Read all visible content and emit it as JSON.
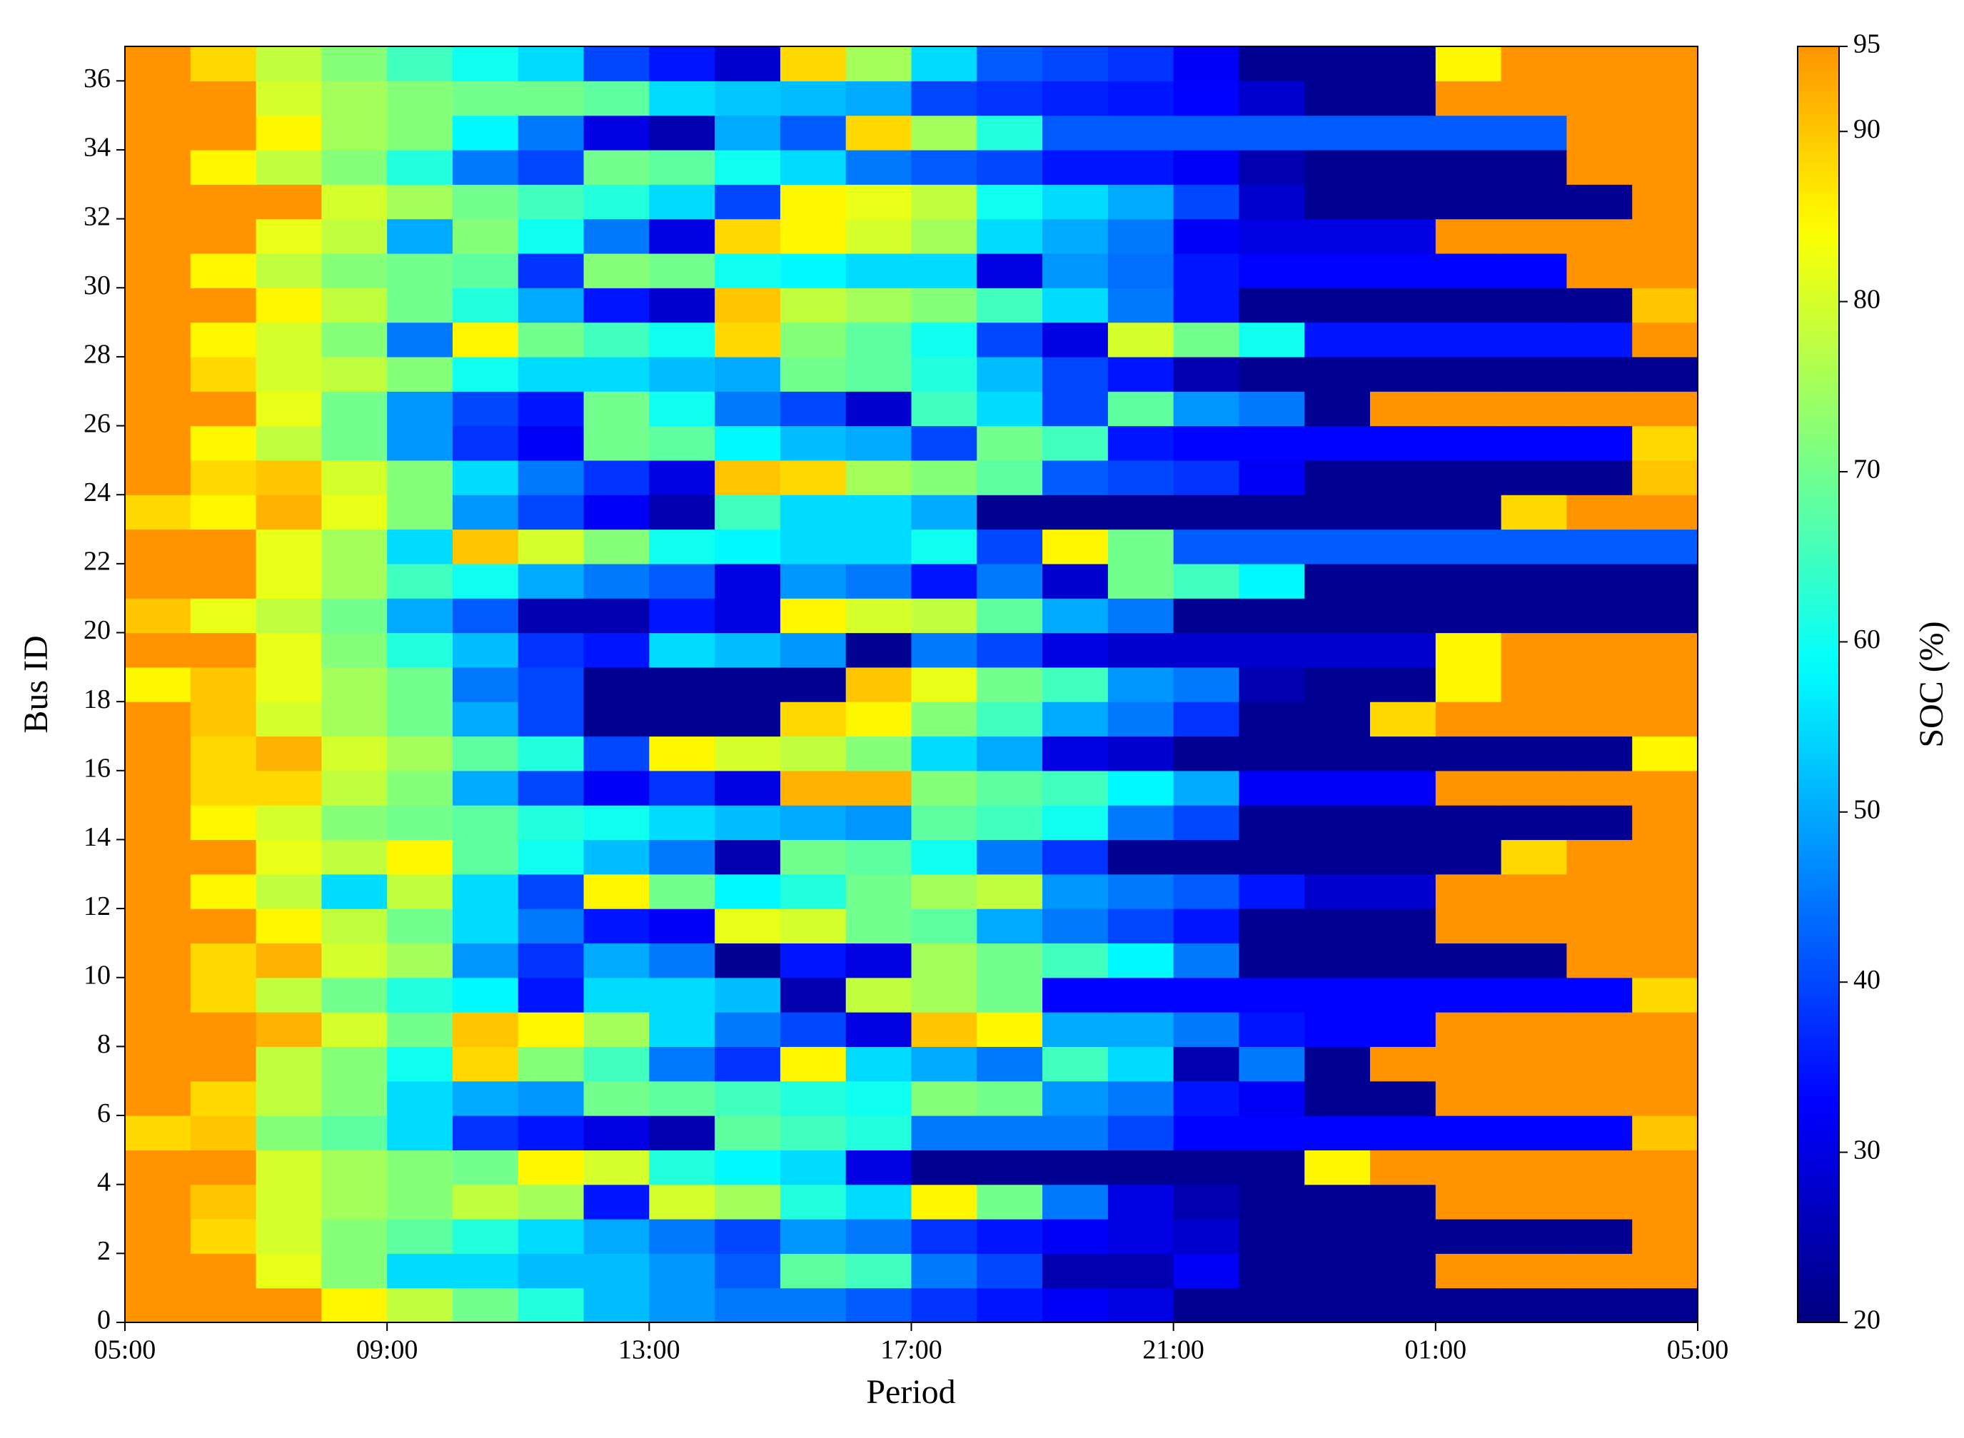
{
  "chart_data": {
    "type": "heatmap",
    "x_label": "Period",
    "y_label": "Bus ID",
    "colorbar_label": "SOC (%)",
    "colormap": "jet",
    "xlim": [
      0,
      24
    ],
    "xticks": [
      {
        "value": 0,
        "label": "05:00"
      },
      {
        "value": 4,
        "label": "09:00"
      },
      {
        "value": 8,
        "label": "13:00"
      },
      {
        "value": 12,
        "label": "17:00"
      },
      {
        "value": 16,
        "label": "21:00"
      },
      {
        "value": 20,
        "label": "01:00"
      },
      {
        "value": 24,
        "label": "05:00"
      }
    ],
    "ylim": [
      0,
      37
    ],
    "yticks": [
      0,
      2,
      4,
      6,
      8,
      10,
      12,
      14,
      16,
      18,
      20,
      22,
      24,
      26,
      28,
      30,
      32,
      34,
      36
    ],
    "clim": [
      20,
      95
    ],
    "cticks": [
      20,
      30,
      40,
      50,
      60,
      70,
      80,
      90,
      95
    ],
    "z": [
      [
        95,
        95,
        95,
        85,
        78,
        70,
        62,
        52,
        48,
        45,
        45,
        42,
        38,
        35,
        32,
        30,
        22,
        22,
        22,
        22,
        22,
        22,
        22,
        22
      ],
      [
        95,
        95,
        82,
        72,
        55,
        55,
        52,
        52,
        48,
        42,
        68,
        65,
        45,
        40,
        25,
        25,
        32,
        22,
        22,
        22,
        95,
        95,
        95,
        95
      ],
      [
        95,
        88,
        80,
        72,
        68,
        62,
        55,
        50,
        45,
        40,
        48,
        45,
        38,
        35,
        32,
        30,
        28,
        22,
        22,
        22,
        22,
        22,
        22,
        95
      ],
      [
        95,
        90,
        80,
        75,
        72,
        78,
        75,
        35,
        80,
        75,
        62,
        55,
        85,
        70,
        45,
        30,
        25,
        22,
        22,
        22,
        95,
        95,
        95,
        95
      ],
      [
        95,
        95,
        80,
        75,
        72,
        70,
        85,
        80,
        62,
        58,
        55,
        30,
        22,
        22,
        22,
        22,
        22,
        22,
        85,
        95,
        95,
        95,
        95,
        95
      ],
      [
        88,
        90,
        72,
        68,
        55,
        38,
        35,
        30,
        25,
        68,
        65,
        62,
        45,
        45,
        45,
        40,
        33,
        33,
        33,
        33,
        33,
        33,
        33,
        90
      ],
      [
        95,
        88,
        78,
        72,
        55,
        50,
        48,
        70,
        68,
        65,
        62,
        60,
        72,
        70,
        48,
        45,
        35,
        32,
        22,
        22,
        95,
        95,
        95,
        95
      ],
      [
        95,
        95,
        78,
        72,
        60,
        88,
        72,
        65,
        45,
        38,
        85,
        55,
        50,
        45,
        65,
        55,
        25,
        45,
        22,
        95,
        95,
        95,
        95,
        95
      ],
      [
        95,
        95,
        92,
        80,
        70,
        90,
        85,
        75,
        55,
        45,
        40,
        30,
        90,
        85,
        50,
        50,
        45,
        35,
        33,
        33,
        95,
        95,
        95,
        95
      ],
      [
        95,
        88,
        78,
        70,
        62,
        58,
        35,
        55,
        55,
        52,
        25,
        78,
        75,
        70,
        33,
        33,
        33,
        33,
        33,
        33,
        33,
        33,
        33,
        88
      ],
      [
        95,
        88,
        92,
        80,
        75,
        48,
        38,
        50,
        45,
        22,
        35,
        30,
        75,
        70,
        65,
        58,
        45,
        22,
        22,
        22,
        22,
        22,
        95,
        95
      ],
      [
        95,
        95,
        85,
        78,
        70,
        55,
        45,
        35,
        32,
        82,
        80,
        70,
        68,
        50,
        45,
        40,
        35,
        22,
        22,
        22,
        95,
        95,
        95,
        95
      ],
      [
        95,
        85,
        78,
        55,
        78,
        55,
        40,
        85,
        70,
        58,
        62,
        70,
        75,
        78,
        48,
        45,
        42,
        35,
        28,
        28,
        95,
        95,
        95,
        95
      ],
      [
        95,
        95,
        82,
        78,
        85,
        68,
        60,
        52,
        45,
        25,
        70,
        68,
        60,
        45,
        38,
        22,
        22,
        22,
        22,
        22,
        22,
        88,
        95,
        95
      ],
      [
        95,
        85,
        80,
        72,
        70,
        68,
        62,
        60,
        55,
        52,
        50,
        48,
        68,
        65,
        60,
        45,
        40,
        22,
        22,
        22,
        22,
        22,
        22,
        95
      ],
      [
        95,
        88,
        88,
        78,
        72,
        50,
        40,
        32,
        38,
        30,
        92,
        92,
        72,
        68,
        65,
        58,
        50,
        32,
        32,
        32,
        95,
        95,
        95,
        95
      ],
      [
        95,
        88,
        92,
        80,
        75,
        68,
        62,
        40,
        85,
        80,
        78,
        72,
        55,
        50,
        30,
        28,
        22,
        22,
        22,
        22,
        22,
        22,
        22,
        85
      ],
      [
        95,
        90,
        80,
        75,
        70,
        50,
        40,
        22,
        22,
        22,
        88,
        85,
        72,
        65,
        50,
        45,
        38,
        22,
        22,
        88,
        95,
        95,
        95,
        95
      ],
      [
        85,
        90,
        82,
        75,
        70,
        45,
        40,
        22,
        22,
        22,
        22,
        90,
        82,
        70,
        65,
        48,
        45,
        25,
        22,
        22,
        85,
        95,
        95,
        95
      ],
      [
        95,
        95,
        82,
        72,
        62,
        52,
        38,
        35,
        55,
        52,
        48,
        22,
        45,
        40,
        30,
        28,
        28,
        28,
        28,
        28,
        85,
        95,
        95,
        95
      ],
      [
        90,
        82,
        78,
        70,
        50,
        42,
        25,
        25,
        35,
        30,
        85,
        80,
        78,
        68,
        50,
        45,
        22,
        22,
        22,
        22,
        22,
        22,
        22,
        22
      ],
      [
        95,
        95,
        82,
        75,
        65,
        60,
        50,
        45,
        42,
        30,
        48,
        45,
        35,
        45,
        28,
        70,
        65,
        58,
        22,
        22,
        22,
        22,
        22,
        22
      ],
      [
        95,
        95,
        82,
        75,
        55,
        90,
        80,
        72,
        60,
        58,
        55,
        55,
        60,
        40,
        85,
        70,
        42,
        42,
        42,
        42,
        42,
        42,
        42,
        42
      ],
      [
        88,
        85,
        92,
        82,
        72,
        48,
        40,
        32,
        25,
        65,
        55,
        55,
        50,
        22,
        22,
        22,
        22,
        22,
        22,
        22,
        22,
        88,
        95,
        95
      ],
      [
        95,
        88,
        90,
        80,
        72,
        55,
        45,
        38,
        30,
        90,
        88,
        75,
        72,
        68,
        42,
        40,
        38,
        32,
        22,
        22,
        22,
        22,
        22,
        90
      ],
      [
        95,
        85,
        78,
        70,
        48,
        38,
        32,
        70,
        68,
        58,
        52,
        50,
        40,
        70,
        65,
        35,
        33,
        33,
        33,
        33,
        33,
        33,
        33,
        88
      ],
      [
        95,
        95,
        82,
        70,
        48,
        40,
        35,
        70,
        60,
        45,
        40,
        28,
        65,
        55,
        40,
        68,
        48,
        45,
        22,
        95,
        95,
        95,
        95,
        95
      ],
      [
        95,
        88,
        80,
        78,
        72,
        60,
        55,
        55,
        52,
        50,
        70,
        68,
        62,
        52,
        40,
        35,
        25,
        22,
        22,
        22,
        22,
        22,
        22,
        22
      ],
      [
        95,
        85,
        80,
        72,
        45,
        85,
        70,
        65,
        60,
        88,
        72,
        68,
        60,
        40,
        30,
        80,
        70,
        60,
        35,
        35,
        35,
        35,
        35,
        95
      ],
      [
        95,
        95,
        85,
        78,
        70,
        62,
        50,
        35,
        28,
        90,
        78,
        75,
        72,
        65,
        55,
        45,
        35,
        22,
        22,
        22,
        22,
        22,
        22,
        90
      ],
      [
        95,
        85,
        78,
        72,
        70,
        68,
        38,
        72,
        70,
        60,
        58,
        55,
        55,
        30,
        48,
        44,
        35,
        33,
        33,
        33,
        33,
        33,
        95,
        95
      ],
      [
        95,
        95,
        82,
        78,
        50,
        72,
        60,
        45,
        30,
        88,
        85,
        80,
        75,
        55,
        50,
        45,
        32,
        30,
        30,
        30,
        95,
        95,
        95,
        95
      ],
      [
        95,
        95,
        95,
        80,
        75,
        70,
        65,
        62,
        55,
        40,
        85,
        82,
        78,
        60,
        55,
        50,
        40,
        28,
        22,
        22,
        22,
        22,
        22,
        95
      ],
      [
        95,
        85,
        78,
        72,
        62,
        45,
        40,
        70,
        68,
        60,
        55,
        45,
        42,
        40,
        35,
        35,
        32,
        25,
        22,
        22,
        22,
        22,
        95,
        95
      ],
      [
        95,
        95,
        85,
        75,
        72,
        58,
        45,
        30,
        25,
        50,
        42,
        88,
        75,
        62,
        42,
        42,
        42,
        42,
        42,
        42,
        42,
        42,
        95,
        95
      ],
      [
        95,
        95,
        80,
        75,
        72,
        70,
        70,
        68,
        55,
        53,
        52,
        50,
        40,
        38,
        36,
        35,
        33,
        28,
        22,
        22,
        95,
        95,
        95,
        95
      ],
      [
        95,
        88,
        78,
        72,
        65,
        60,
        55,
        40,
        35,
        28,
        88,
        75,
        55,
        42,
        40,
        38,
        32,
        22,
        22,
        22,
        85,
        95,
        95,
        95
      ]
    ]
  }
}
